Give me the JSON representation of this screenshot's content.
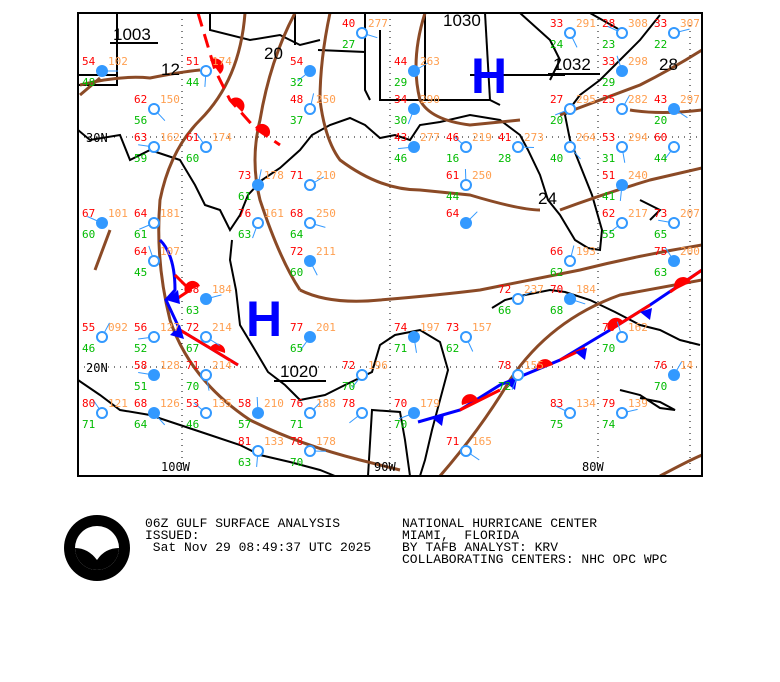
{
  "map": {
    "lat_labels": [
      "30N",
      "20N"
    ],
    "lon_labels": [
      "100W",
      "90W",
      "80W"
    ],
    "isobar_labels": [
      "1003",
      "12",
      "20",
      "1030",
      "1032",
      "28",
      "24",
      "1020"
    ],
    "high_symbol": "H",
    "colors": {
      "isobar": "#8b4a26",
      "coast": "#000000",
      "temp": "#ff0000",
      "dewpoint": "#00bb00",
      "pressure": "#ff9f50",
      "station": "#3399ff",
      "cold_front": "#0000ff",
      "warm_front": "#ff0000",
      "high": "#0000ff"
    },
    "stations": [
      {
        "t": "54",
        "d": "48",
        "p": "102"
      },
      {
        "t": "62",
        "d": "56",
        "p": "150"
      },
      {
        "t": "51",
        "d": "44",
        "p": "174"
      },
      {
        "t": "54",
        "d": "32",
        "p": ""
      },
      {
        "t": "63",
        "d": "59",
        "p": "162"
      },
      {
        "t": "61",
        "d": "60",
        "p": "174"
      },
      {
        "t": "73",
        "d": "61",
        "p": "178"
      },
      {
        "t": "71",
        "d": "",
        "p": "210"
      },
      {
        "t": "68",
        "d": "64",
        "p": "250"
      },
      {
        "t": "72",
        "d": "60",
        "p": "211"
      },
      {
        "t": "76",
        "d": "63",
        "p": "161"
      },
      {
        "t": "64",
        "d": "61",
        "p": "181"
      },
      {
        "t": "67",
        "d": "60",
        "p": "101"
      },
      {
        "t": "64",
        "d": "45",
        "p": "107"
      },
      {
        "t": "55",
        "d": "46",
        "p": "092"
      },
      {
        "t": "68",
        "d": "63",
        "p": "184"
      },
      {
        "t": "72",
        "d": "67",
        "p": "214"
      },
      {
        "t": "71",
        "d": "70",
        "p": "214"
      },
      {
        "t": "77",
        "d": "65",
        "p": "201"
      },
      {
        "t": "56",
        "d": "52",
        "p": "127"
      },
      {
        "t": "53",
        "d": "46",
        "p": "135"
      },
      {
        "t": "58",
        "d": "57",
        "p": "210"
      },
      {
        "t": "76",
        "d": "71",
        "p": "188"
      },
      {
        "t": "78",
        "d": "70",
        "p": "178"
      },
      {
        "t": "68",
        "d": "64",
        "p": "126"
      },
      {
        "t": "81",
        "d": "63",
        "p": "133"
      },
      {
        "t": "78",
        "d": "",
        "p": ""
      },
      {
        "t": "58",
        "d": "51",
        "p": "128"
      },
      {
        "t": "80",
        "d": "71",
        "p": "121"
      },
      {
        "t": "48",
        "d": "37",
        "p": "250"
      },
      {
        "t": "44",
        "d": "29",
        "p": "263"
      },
      {
        "t": "40",
        "d": "27",
        "p": "277"
      },
      {
        "t": "33",
        "d": "24",
        "p": "291"
      },
      {
        "t": "34",
        "d": "30",
        "p": "290"
      },
      {
        "t": "27",
        "d": "20",
        "p": "295"
      },
      {
        "t": "28",
        "d": "23",
        "p": "308"
      },
      {
        "t": "33",
        "d": "29",
        "p": "298"
      },
      {
        "t": "25",
        "d": "",
        "p": "282"
      },
      {
        "t": "33",
        "d": "22",
        "p": "307"
      },
      {
        "t": "43",
        "d": "20",
        "p": "297"
      },
      {
        "t": "53",
        "d": "31",
        "p": "294"
      },
      {
        "t": "60",
        "d": "44",
        "p": ""
      },
      {
        "t": "43",
        "d": "46",
        "p": "277"
      },
      {
        "t": "46",
        "d": "16",
        "p": "219"
      },
      {
        "t": "61",
        "d": "44",
        "p": "250"
      },
      {
        "t": "64",
        "d": "",
        "p": ""
      },
      {
        "t": "41",
        "d": "28",
        "p": "273"
      },
      {
        "t": "",
        "d": "40",
        "p": "264"
      },
      {
        "t": "51",
        "d": "41",
        "p": "240"
      },
      {
        "t": "62",
        "d": "55",
        "p": "217"
      },
      {
        "t": "73",
        "d": "65",
        "p": "207"
      },
      {
        "t": "75",
        "d": "63",
        "p": "200"
      },
      {
        "t": "66",
        "d": "62",
        "p": "193"
      },
      {
        "t": "72",
        "d": "66",
        "p": "237"
      },
      {
        "t": "70",
        "d": "68",
        "p": "184"
      },
      {
        "t": "73",
        "d": "62",
        "p": "157"
      },
      {
        "t": "78",
        "d": "72",
        "p": "155"
      },
      {
        "t": "70",
        "d": "70",
        "p": "179"
      },
      {
        "t": "83",
        "d": "75",
        "p": "134"
      },
      {
        "t": "70",
        "d": "70",
        "p": "162"
      },
      {
        "t": "76",
        "d": "70",
        "p": "14"
      },
      {
        "t": "79",
        "d": "74",
        "p": "139"
      },
      {
        "t": "71",
        "d": "",
        "p": "165"
      },
      {
        "t": "74",
        "d": "71",
        "p": "197"
      },
      {
        "t": "72",
        "d": "70",
        "p": "196"
      }
    ]
  },
  "footer": {
    "logo_text": "NOAA",
    "title": "06Z GULF SURFACE ANALYSIS",
    "issued_label": "ISSUED:",
    "issued_time": " Sat Nov 29 08:49:37 UTC 2025",
    "center": "NATIONAL HURRICANE CENTER",
    "location": "MIAMI,  FLORIDA",
    "analyst": "BY TAFB ANALYST: KRV",
    "collaborating": "COLLABORATING CENTERS: NHC OPC WPC"
  }
}
